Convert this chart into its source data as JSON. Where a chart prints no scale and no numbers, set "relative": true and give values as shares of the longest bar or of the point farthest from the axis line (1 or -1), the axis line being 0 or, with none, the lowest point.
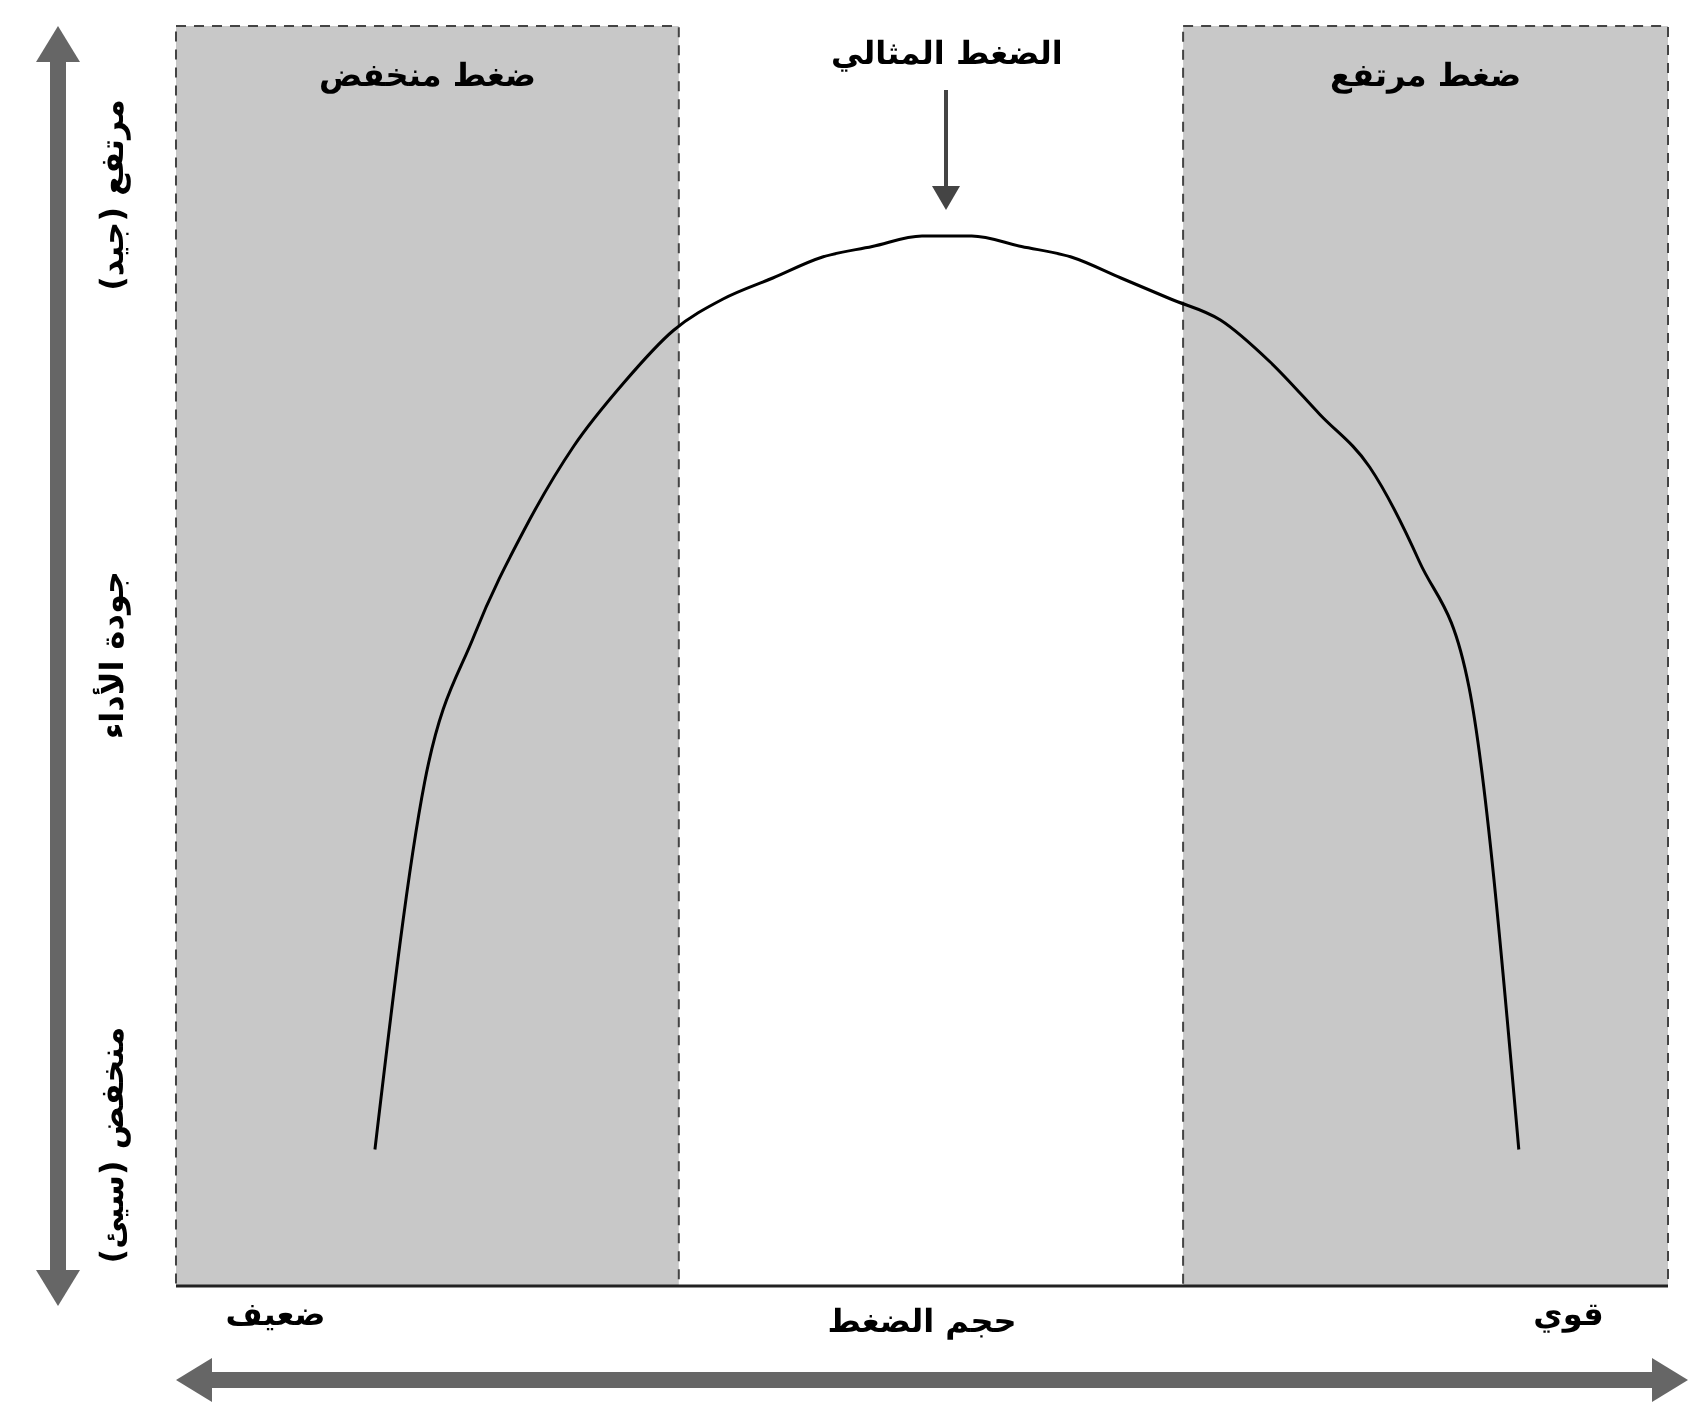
{
  "chart_data": {
    "type": "line",
    "relative": true,
    "title": null,
    "xlabel": "حجم الضغط",
    "ylabel": "جودة الأداء",
    "categories": [
      null,
      null,
      "ضعيف",
      null,
      null,
      null,
      null,
      null,
      null,
      null,
      null,
      null,
      null,
      null,
      null,
      null,
      null,
      null,
      null,
      null,
      null,
      null,
      null,
      null,
      null,
      null,
      null,
      null,
      "قوي",
      null,
      null
    ],
    "series": [
      {
        "color": "#000000",
        "values": [
          null,
          null,
          null,
          null,
          0.13,
          0.48,
          0.62,
          0.72,
          0.8,
          0.86,
          0.91,
          0.94,
          0.96,
          0.98,
          0.99,
          1,
          1,
          0.99,
          0.98,
          0.96,
          0.94,
          0.92,
          0.88,
          0.83,
          0.78,
          0.69,
          0.57,
          0.13,
          null,
          null,
          null
        ]
      }
    ],
    "annotations": [
      "الضغط المثالي",
      "مرتفع (جيد)",
      "منخفض (سيئ)",
      "ضغط منخفض",
      "ضغط مرتفع"
    ],
    "grid": false,
    "legend": false,
    "marker": "none",
    "line_style": "solid"
  }
}
